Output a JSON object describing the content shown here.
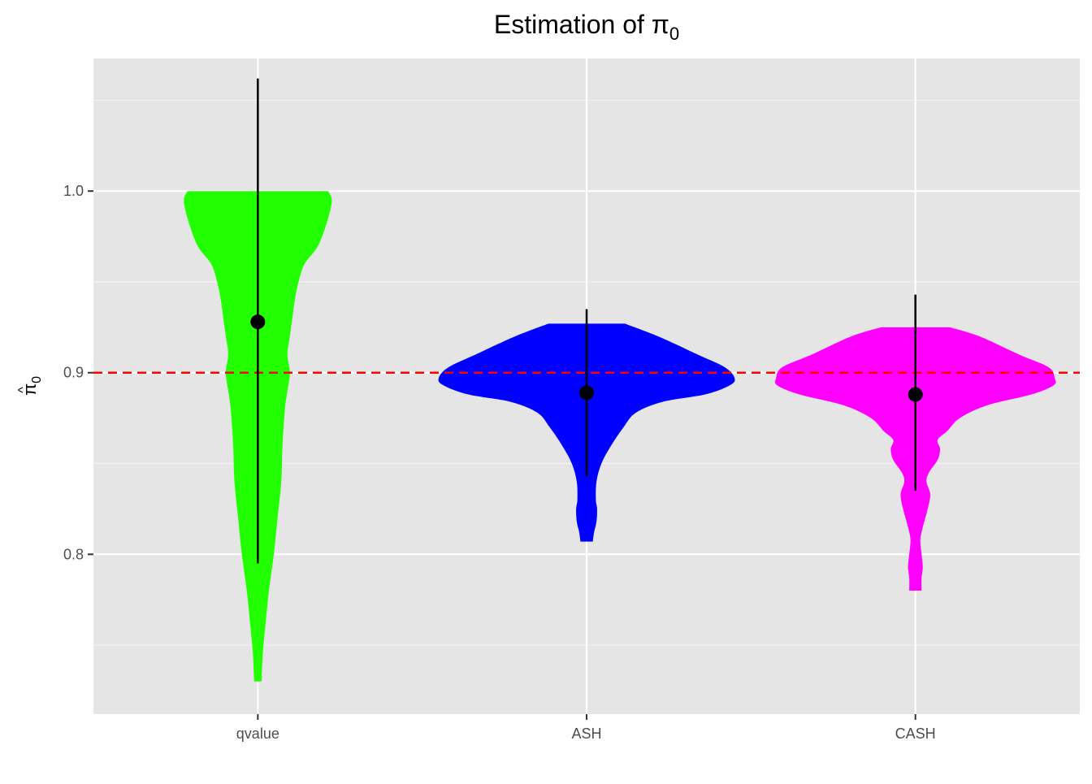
{
  "chart_data": {
    "type": "violin",
    "title": "Estimation of",
    "title_symbol": "π",
    "title_subscript": "0",
    "xlabel": "",
    "ylabel_symbol": "π",
    "ylabel_hat": "^",
    "ylabel_subscript": "0",
    "ylim": [
      0.712,
      1.073
    ],
    "y_ticks": [
      0.8,
      0.9,
      1.0
    ],
    "y_tick_labels": [
      "0.8",
      "0.9",
      "1.0"
    ],
    "y_minor_ticks": [
      0.75,
      0.85,
      0.95,
      1.05
    ],
    "grid": true,
    "reference_line": {
      "y": 0.9,
      "style": "dashed",
      "color": "#ff0000"
    },
    "categories": [
      "qvalue",
      "ASH",
      "CASH"
    ],
    "series": [
      {
        "category": "qvalue",
        "color": "#22ff00",
        "mean": 0.928,
        "lower": 0.795,
        "upper": 1.062,
        "density": [
          [
            1.0,
            0.57
          ],
          [
            0.995,
            0.6
          ],
          [
            0.985,
            0.57
          ],
          [
            0.97,
            0.49
          ],
          [
            0.96,
            0.38
          ],
          [
            0.95,
            0.33
          ],
          [
            0.94,
            0.3
          ],
          [
            0.93,
            0.28
          ],
          [
            0.92,
            0.26
          ],
          [
            0.91,
            0.24
          ],
          [
            0.9,
            0.26
          ],
          [
            0.89,
            0.24
          ],
          [
            0.88,
            0.22
          ],
          [
            0.86,
            0.2
          ],
          [
            0.84,
            0.19
          ],
          [
            0.82,
            0.16
          ],
          [
            0.8,
            0.13
          ],
          [
            0.78,
            0.09
          ],
          [
            0.76,
            0.06
          ],
          [
            0.745,
            0.04
          ],
          [
            0.73,
            0.03
          ]
        ]
      },
      {
        "category": "ASH",
        "color": "#0000ff",
        "mean": 0.889,
        "lower": 0.843,
        "upper": 0.935,
        "density": [
          [
            0.927,
            0.31
          ],
          [
            0.92,
            0.58
          ],
          [
            0.91,
            0.9
          ],
          [
            0.903,
            1.12
          ],
          [
            0.897,
            1.2
          ],
          [
            0.893,
            1.16
          ],
          [
            0.888,
            0.96
          ],
          [
            0.884,
            0.62
          ],
          [
            0.878,
            0.4
          ],
          [
            0.87,
            0.3
          ],
          [
            0.86,
            0.2
          ],
          [
            0.85,
            0.12
          ],
          [
            0.84,
            0.08
          ],
          [
            0.83,
            0.075
          ],
          [
            0.825,
            0.085
          ],
          [
            0.818,
            0.08
          ],
          [
            0.812,
            0.06
          ],
          [
            0.807,
            0.05
          ]
        ]
      },
      {
        "category": "CASH",
        "color": "#ff00ff",
        "mean": 0.888,
        "lower": 0.835,
        "upper": 0.943,
        "density": [
          [
            0.925,
            0.28
          ],
          [
            0.92,
            0.52
          ],
          [
            0.91,
            0.84
          ],
          [
            0.903,
            1.08
          ],
          [
            0.897,
            1.13
          ],
          [
            0.893,
            1.12
          ],
          [
            0.888,
            0.94
          ],
          [
            0.882,
            0.58
          ],
          [
            0.875,
            0.36
          ],
          [
            0.868,
            0.26
          ],
          [
            0.863,
            0.18
          ],
          [
            0.858,
            0.2
          ],
          [
            0.852,
            0.18
          ],
          [
            0.845,
            0.11
          ],
          [
            0.84,
            0.09
          ],
          [
            0.833,
            0.12
          ],
          [
            0.825,
            0.1
          ],
          [
            0.815,
            0.06
          ],
          [
            0.808,
            0.04
          ],
          [
            0.8,
            0.05
          ],
          [
            0.793,
            0.06
          ],
          [
            0.787,
            0.05
          ],
          [
            0.78,
            0.05
          ]
        ]
      }
    ]
  }
}
